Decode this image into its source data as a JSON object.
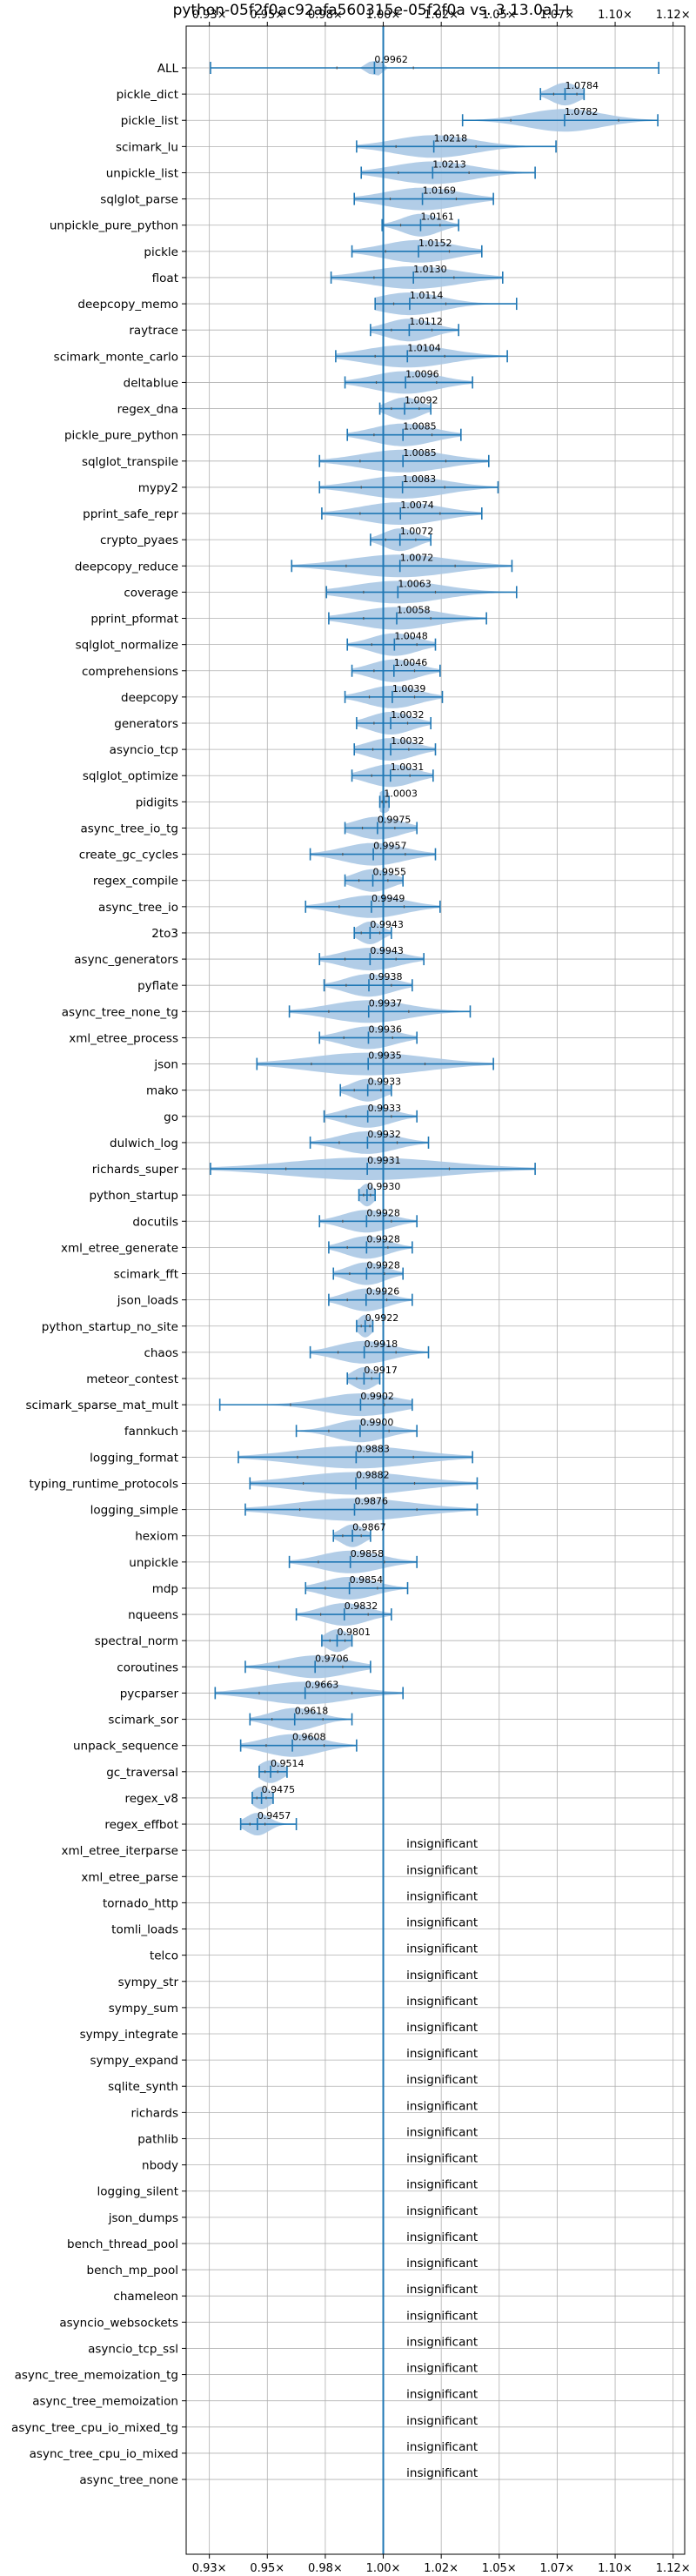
{
  "chart_data": {
    "type": "violin",
    "title": "python-05f2f0ac92afa560315e-05f2f0a vs. 3.13.0a1+",
    "x_ticks": [
      "0.93×",
      "0.95×",
      "0.98×",
      "1.00×",
      "1.02×",
      "1.05×",
      "1.07×",
      "1.10×",
      "1.12×"
    ],
    "x_tick_values": [
      0.925,
      0.95,
      0.975,
      1.0,
      1.025,
      1.05,
      1.075,
      1.1,
      1.125
    ],
    "xlim": [
      0.915,
      1.13
    ],
    "reference_line": 1.0,
    "grid": true,
    "colors": {
      "violin": "#aac8e4",
      "line": "#1f77b4"
    },
    "insignificant_label": "insignificant",
    "benchmarks": [
      {
        "name": "ALL",
        "median": 0.9962,
        "min": 0.9255,
        "max": 1.1188,
        "q1": 0.98,
        "q3": 1.013,
        "spread": 0.004
      },
      {
        "name": "pickle_dict",
        "median": 1.0784,
        "min": 1.0678,
        "max": 1.0866,
        "q1": 1.0735,
        "q3": 1.0835,
        "spread": 0.012
      },
      {
        "name": "pickle_list",
        "median": 1.0782,
        "min": 1.0342,
        "max": 1.1184,
        "q1": 1.055,
        "q3": 1.1015,
        "spread": 0.032
      },
      {
        "name": "scimark_lu",
        "median": 1.0218,
        "min": 0.9885,
        "max": 1.0745,
        "q1": 1.0055,
        "q3": 1.04,
        "spread": 0.034
      },
      {
        "name": "unpickle_list",
        "median": 1.0213,
        "min": 0.9905,
        "max": 1.0655,
        "q1": 1.0065,
        "q3": 1.037,
        "spread": 0.034
      },
      {
        "name": "sqlglot_parse",
        "median": 1.0169,
        "min": 0.9875,
        "max": 1.0475,
        "q1": 1.003,
        "q3": 1.0315,
        "spread": 0.032
      },
      {
        "name": "unpickle_pure_python",
        "median": 1.0161,
        "min": 0.9995,
        "max": 1.0325,
        "q1": 1.0075,
        "q3": 1.0245,
        "spread": 0.016
      },
      {
        "name": "pickle",
        "median": 1.0152,
        "min": 0.9865,
        "max": 1.0425,
        "q1": 1.001,
        "q3": 1.0285,
        "spread": 0.03
      },
      {
        "name": "float",
        "median": 1.013,
        "min": 0.9775,
        "max": 1.0515,
        "q1": 0.996,
        "q3": 1.0305,
        "spread": 0.038
      },
      {
        "name": "deepcopy_memo",
        "median": 1.0114,
        "min": 0.9965,
        "max": 1.0575,
        "q1": 1.0045,
        "q3": 1.027,
        "spread": 0.028
      },
      {
        "name": "raytrace",
        "median": 1.0112,
        "min": 0.9945,
        "max": 1.0325,
        "q1": 1.0035,
        "q3": 1.021,
        "spread": 0.02
      },
      {
        "name": "scimark_monte_carlo",
        "median": 1.0104,
        "min": 0.9795,
        "max": 1.0535,
        "q1": 0.9965,
        "q3": 1.0265,
        "spread": 0.036
      },
      {
        "name": "deltablue",
        "median": 1.0096,
        "min": 0.9835,
        "max": 1.0385,
        "q1": 0.997,
        "q3": 1.023,
        "spread": 0.028
      },
      {
        "name": "regex_dna",
        "median": 1.0092,
        "min": 0.9985,
        "max": 1.0205,
        "q1": 1.0035,
        "q3": 1.0155,
        "spread": 0.014
      },
      {
        "name": "pickle_pure_python",
        "median": 1.0085,
        "min": 0.9845,
        "max": 1.0335,
        "q1": 0.996,
        "q3": 1.021,
        "spread": 0.026
      },
      {
        "name": "sqlglot_transpile",
        "median": 1.0085,
        "min": 0.9725,
        "max": 1.0455,
        "q1": 0.99,
        "q3": 1.027,
        "spread": 0.036
      },
      {
        "name": "mypy2",
        "median": 1.0083,
        "min": 0.9725,
        "max": 1.0495,
        "q1": 0.9905,
        "q3": 1.0265,
        "spread": 0.036
      },
      {
        "name": "pprint_safe_repr",
        "median": 1.0074,
        "min": 0.9735,
        "max": 1.0425,
        "q1": 0.99,
        "q3": 1.0245,
        "spread": 0.034
      },
      {
        "name": "crypto_pyaes",
        "median": 1.0072,
        "min": 0.9945,
        "max": 1.0205,
        "q1": 1.001,
        "q3": 1.014,
        "spread": 0.014
      },
      {
        "name": "deepcopy_reduce",
        "median": 1.0072,
        "min": 0.9605,
        "max": 1.0555,
        "q1": 0.984,
        "q3": 1.031,
        "spread": 0.044
      },
      {
        "name": "coverage",
        "median": 1.0063,
        "min": 0.9755,
        "max": 1.0575,
        "q1": 0.9915,
        "q3": 1.0225,
        "spread": 0.038
      },
      {
        "name": "pprint_pformat",
        "median": 1.0058,
        "min": 0.9765,
        "max": 1.0445,
        "q1": 0.9915,
        "q3": 1.0205,
        "spread": 0.034
      },
      {
        "name": "sqlglot_normalize",
        "median": 1.0048,
        "min": 0.9845,
        "max": 1.0225,
        "q1": 0.995,
        "q3": 1.0145,
        "spread": 0.02
      },
      {
        "name": "comprehensions",
        "median": 1.0046,
        "min": 0.9865,
        "max": 1.0245,
        "q1": 0.996,
        "q3": 1.0135,
        "spread": 0.02
      },
      {
        "name": "deepcopy",
        "median": 1.0039,
        "min": 0.9835,
        "max": 1.0255,
        "q1": 0.994,
        "q3": 1.0135,
        "spread": 0.022
      },
      {
        "name": "generators",
        "median": 1.0032,
        "min": 0.9885,
        "max": 1.0205,
        "q1": 0.996,
        "q3": 1.0105,
        "spread": 0.018
      },
      {
        "name": "asyncio_tcp",
        "median": 1.0032,
        "min": 0.9875,
        "max": 1.0225,
        "q1": 0.9955,
        "q3": 1.011,
        "spread": 0.02
      },
      {
        "name": "sqlglot_optimize",
        "median": 1.0031,
        "min": 0.9865,
        "max": 1.0215,
        "q1": 0.995,
        "q3": 1.0115,
        "spread": 0.02
      },
      {
        "name": "pidigits",
        "median": 1.0003,
        "min": 0.9985,
        "max": 1.0025,
        "q1": 0.9995,
        "q3": 1.0012,
        "spread": 0.006
      },
      {
        "name": "async_tree_io_tg",
        "median": 0.9975,
        "min": 0.9835,
        "max": 1.0145,
        "q1": 0.991,
        "q3": 1.005,
        "spread": 0.02
      },
      {
        "name": "create_gc_cycles",
        "median": 0.9957,
        "min": 0.9685,
        "max": 1.0225,
        "q1": 0.9825,
        "q3": 1.0095,
        "spread": 0.026
      },
      {
        "name": "regex_compile",
        "median": 0.9955,
        "min": 0.9835,
        "max": 1.0085,
        "q1": 0.9895,
        "q3": 1.002,
        "spread": 0.016
      },
      {
        "name": "async_tree_io",
        "median": 0.9949,
        "min": 0.9665,
        "max": 1.0245,
        "q1": 0.981,
        "q3": 1.009,
        "spread": 0.028
      },
      {
        "name": "2to3",
        "median": 0.9943,
        "min": 0.9875,
        "max": 1.0035,
        "q1": 0.9905,
        "q3": 0.9985,
        "spread": 0.01
      },
      {
        "name": "async_generators",
        "median": 0.9943,
        "min": 0.9725,
        "max": 1.0175,
        "q1": 0.9835,
        "q3": 1.0055,
        "spread": 0.024
      },
      {
        "name": "pyflate",
        "median": 0.9938,
        "min": 0.9745,
        "max": 1.0125,
        "q1": 0.984,
        "q3": 1.0035,
        "spread": 0.02
      },
      {
        "name": "async_tree_none_tg",
        "median": 0.9937,
        "min": 0.9595,
        "max": 1.0375,
        "q1": 0.9765,
        "q3": 1.011,
        "spread": 0.034
      },
      {
        "name": "xml_etree_process",
        "median": 0.9936,
        "min": 0.9725,
        "max": 1.0145,
        "q1": 0.983,
        "q3": 1.004,
        "spread": 0.022
      },
      {
        "name": "json",
        "median": 0.9935,
        "min": 0.9455,
        "max": 1.0475,
        "q1": 0.969,
        "q3": 1.018,
        "spread": 0.05
      },
      {
        "name": "mako",
        "median": 0.9933,
        "min": 0.9815,
        "max": 1.0035,
        "q1": 0.9875,
        "q3": 0.999,
        "spread": 0.014
      },
      {
        "name": "go",
        "median": 0.9933,
        "min": 0.9745,
        "max": 1.0145,
        "q1": 0.984,
        "q3": 1.0035,
        "spread": 0.02
      },
      {
        "name": "dulwich_log",
        "median": 0.9932,
        "min": 0.9685,
        "max": 1.0195,
        "q1": 0.981,
        "q3": 1.006,
        "spread": 0.024
      },
      {
        "name": "richards_super",
        "median": 0.9931,
        "min": 0.9255,
        "max": 1.0655,
        "q1": 0.958,
        "q3": 1.0285,
        "spread": 0.068
      },
      {
        "name": "python_startup",
        "median": 0.993,
        "min": 0.9895,
        "max": 0.9965,
        "q1": 0.9915,
        "q3": 0.9945,
        "spread": 0.006
      },
      {
        "name": "docutils",
        "median": 0.9928,
        "min": 0.9725,
        "max": 1.0145,
        "q1": 0.9825,
        "q3": 1.0035,
        "spread": 0.02
      },
      {
        "name": "xml_etree_generate",
        "median": 0.9928,
        "min": 0.9765,
        "max": 1.0125,
        "q1": 0.9845,
        "q3": 1.002,
        "spread": 0.018
      },
      {
        "name": "scimark_fft",
        "median": 0.9928,
        "min": 0.9785,
        "max": 1.0085,
        "q1": 0.9855,
        "q3": 1.0005,
        "spread": 0.016
      },
      {
        "name": "json_loads",
        "median": 0.9926,
        "min": 0.9765,
        "max": 1.0125,
        "q1": 0.9845,
        "q3": 1.0015,
        "spread": 0.018
      },
      {
        "name": "python_startup_no_site",
        "median": 0.9922,
        "min": 0.9885,
        "max": 0.9955,
        "q1": 0.9905,
        "q3": 0.9942,
        "spread": 0.006
      },
      {
        "name": "chaos",
        "median": 0.9918,
        "min": 0.9685,
        "max": 1.0195,
        "q1": 0.9805,
        "q3": 1.0055,
        "spread": 0.024
      },
      {
        "name": "meteor_contest",
        "median": 0.9917,
        "min": 0.9845,
        "max": 0.9985,
        "q1": 0.9885,
        "q3": 0.995,
        "spread": 0.01
      },
      {
        "name": "scimark_sparse_mat_mult",
        "median": 0.9902,
        "min": 0.9295,
        "max": 1.0125,
        "q1": 0.96,
        "q3": 1.0005,
        "spread": 0.032
      },
      {
        "name": "fannkuch",
        "median": 0.99,
        "min": 0.9625,
        "max": 1.0145,
        "q1": 0.9765,
        "q3": 1.0025,
        "spread": 0.022
      },
      {
        "name": "logging_format",
        "median": 0.9883,
        "min": 0.9375,
        "max": 1.0385,
        "q1": 0.963,
        "q3": 1.013,
        "spread": 0.05
      },
      {
        "name": "typing_runtime_protocols",
        "median": 0.9882,
        "min": 0.9425,
        "max": 1.0405,
        "q1": 0.9655,
        "q3": 1.0135,
        "spread": 0.05
      },
      {
        "name": "logging_simple",
        "median": 0.9876,
        "min": 0.9405,
        "max": 1.0405,
        "q1": 0.964,
        "q3": 1.0145,
        "spread": 0.05
      },
      {
        "name": "hexiom",
        "median": 0.9867,
        "min": 0.9785,
        "max": 0.9945,
        "q1": 0.9825,
        "q3": 0.9905,
        "spread": 0.01
      },
      {
        "name": "unpickle",
        "median": 0.9858,
        "min": 0.9595,
        "max": 1.0145,
        "q1": 0.972,
        "q3": 1.0005,
        "spread": 0.026
      },
      {
        "name": "mdp",
        "median": 0.9854,
        "min": 0.9665,
        "max": 1.0105,
        "q1": 0.975,
        "q3": 0.9975,
        "spread": 0.022
      },
      {
        "name": "nqueens",
        "median": 0.9832,
        "min": 0.9625,
        "max": 1.0035,
        "q1": 0.973,
        "q3": 0.9935,
        "spread": 0.02
      },
      {
        "name": "spectral_norm",
        "median": 0.9801,
        "min": 0.9735,
        "max": 0.9865,
        "q1": 0.977,
        "q3": 0.9835,
        "spread": 0.01
      },
      {
        "name": "coroutines",
        "median": 0.9706,
        "min": 0.9405,
        "max": 0.9945,
        "q1": 0.955,
        "q3": 0.9825,
        "spread": 0.028
      },
      {
        "name": "pycparser",
        "median": 0.9663,
        "min": 0.9275,
        "max": 1.0085,
        "q1": 0.9465,
        "q3": 0.9865,
        "spread": 0.038
      },
      {
        "name": "scimark_sor",
        "median": 0.9618,
        "min": 0.9425,
        "max": 0.9865,
        "q1": 0.952,
        "q3": 0.974,
        "spread": 0.02
      },
      {
        "name": "unpack_sequence",
        "median": 0.9608,
        "min": 0.9385,
        "max": 0.9885,
        "q1": 0.9495,
        "q3": 0.9745,
        "spread": 0.024
      },
      {
        "name": "gc_traversal",
        "median": 0.9514,
        "min": 0.9465,
        "max": 0.9585,
        "q1": 0.949,
        "q3": 0.9545,
        "spread": 0.01
      },
      {
        "name": "regex_v8",
        "median": 0.9475,
        "min": 0.9435,
        "max": 0.9525,
        "q1": 0.9455,
        "q3": 0.9495,
        "spread": 0.008
      },
      {
        "name": "regex_effbot",
        "median": 0.9457,
        "min": 0.9385,
        "max": 0.9625,
        "q1": 0.9425,
        "q3": 0.949,
        "spread": 0.01
      },
      {
        "name": "xml_etree_iterparse",
        "insignificant": true
      },
      {
        "name": "xml_etree_parse",
        "insignificant": true
      },
      {
        "name": "tornado_http",
        "insignificant": true
      },
      {
        "name": "tomli_loads",
        "insignificant": true
      },
      {
        "name": "telco",
        "insignificant": true
      },
      {
        "name": "sympy_str",
        "insignificant": true
      },
      {
        "name": "sympy_sum",
        "insignificant": true
      },
      {
        "name": "sympy_integrate",
        "insignificant": true
      },
      {
        "name": "sympy_expand",
        "insignificant": true
      },
      {
        "name": "sqlite_synth",
        "insignificant": true
      },
      {
        "name": "richards",
        "insignificant": true
      },
      {
        "name": "pathlib",
        "insignificant": true
      },
      {
        "name": "nbody",
        "insignificant": true
      },
      {
        "name": "logging_silent",
        "insignificant": true
      },
      {
        "name": "json_dumps",
        "insignificant": true
      },
      {
        "name": "bench_thread_pool",
        "insignificant": true
      },
      {
        "name": "bench_mp_pool",
        "insignificant": true
      },
      {
        "name": "chameleon",
        "insignificant": true
      },
      {
        "name": "asyncio_websockets",
        "insignificant": true
      },
      {
        "name": "asyncio_tcp_ssl",
        "insignificant": true
      },
      {
        "name": "async_tree_memoization_tg",
        "insignificant": true
      },
      {
        "name": "async_tree_memoization",
        "insignificant": true
      },
      {
        "name": "async_tree_cpu_io_mixed_tg",
        "insignificant": true
      },
      {
        "name": "async_tree_cpu_io_mixed",
        "insignificant": true
      },
      {
        "name": "async_tree_none",
        "insignificant": true
      }
    ]
  }
}
